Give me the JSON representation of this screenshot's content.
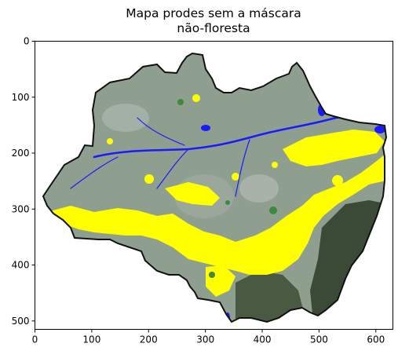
{
  "figure": {
    "title_line1": "Mapa prodes sem a máscara",
    "title_line2": "não-floresta"
  },
  "chart_data": {
    "type": "image",
    "title": "Mapa prodes sem a máscara não-floresta",
    "xlabel": "",
    "ylabel": "",
    "xlim": [
      0,
      630
    ],
    "ylim": [
      515,
      0
    ],
    "x_ticks": [
      0,
      100,
      200,
      300,
      400,
      500,
      600
    ],
    "y_ticks": [
      0,
      100,
      200,
      300,
      400,
      500
    ],
    "x_tick_labels": [
      "0",
      "100",
      "200",
      "300",
      "400",
      "500",
      "600"
    ],
    "y_tick_labels": [
      "0",
      "100",
      "200",
      "300",
      "400",
      "500"
    ],
    "grid": false,
    "legend": "none"
  },
  "colors": {
    "forest_background": "#8f9f8f",
    "deforestation": "#ffff00",
    "water": "#1a1aff",
    "dark_vegetation": "#3b4a36",
    "border": "#111111"
  }
}
